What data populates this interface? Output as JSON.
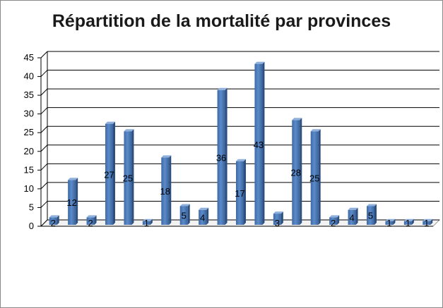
{
  "chart_data": {
    "type": "bar",
    "title": "Répartition de la mortalité par provinces",
    "xlabel": "",
    "ylabel": "",
    "ylim": [
      0,
      45
    ],
    "yticks": [
      0,
      5,
      10,
      15,
      20,
      25,
      30,
      35,
      40,
      45
    ],
    "grid": true,
    "legend": "none",
    "bar_color": "#4a78b5",
    "values": [
      2,
      12,
      2,
      27,
      25,
      1,
      18,
      5,
      4,
      36,
      17,
      43,
      3,
      28,
      25,
      2,
      4,
      5,
      1,
      1,
      1
    ],
    "data_labels": [
      "2",
      "12",
      "2",
      "27",
      "25",
      "1",
      "18",
      "5",
      "4",
      "36",
      "17",
      "43",
      "3",
      "28",
      "25",
      "2",
      "4",
      "5",
      "1",
      "1",
      "1"
    ]
  }
}
